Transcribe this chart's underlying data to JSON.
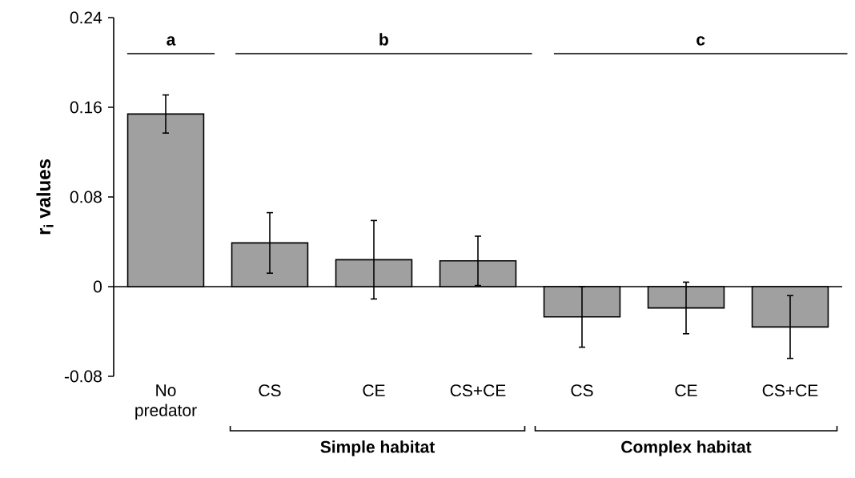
{
  "chart_data": {
    "type": "bar",
    "ylabel": "r$_{i}$ values",
    "categories": [
      "No predator",
      "CS",
      "CE",
      "CS+CE",
      "CS",
      "CE",
      "CS+CE"
    ],
    "values": [
      0.154,
      0.039,
      0.024,
      0.023,
      -0.027,
      -0.019,
      -0.036
    ],
    "errors": [
      0.017,
      0.027,
      0.035,
      0.022,
      0.027,
      0.023,
      0.028
    ],
    "color": "#a0a0a0",
    "ylim": [
      -0.08,
      0.24
    ],
    "yticks": [
      -0.08,
      0,
      0.08,
      0.16,
      0.24
    ],
    "annotations": [
      "a",
      "b",
      "c",
      "Simple habitat",
      "Complex habitat"
    ]
  }
}
